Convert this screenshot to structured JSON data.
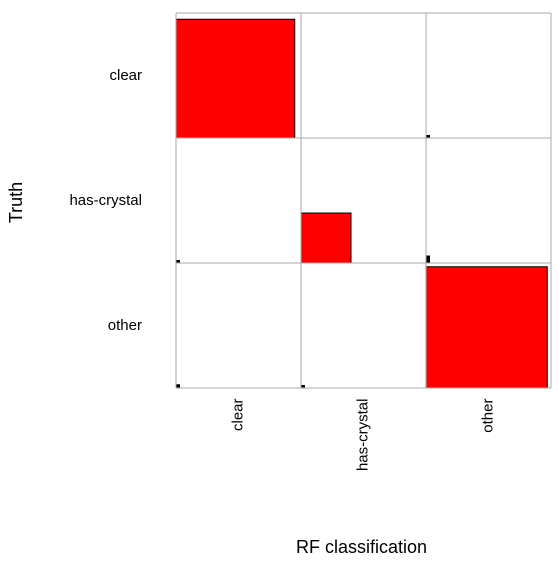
{
  "chart_data": {
    "type": "heatmap",
    "xlabel": "RF classification",
    "ylabel": "Truth",
    "row_labels": [
      "clear",
      "has-crystal",
      "other"
    ],
    "col_labels": [
      "clear",
      "has-crystal",
      "other"
    ],
    "fill_color": "#ff0000",
    "matrix": [
      [
        0.95,
        0.0,
        0.01
      ],
      [
        0.02,
        0.4,
        0.06
      ],
      [
        0.03,
        0.01,
        0.97
      ]
    ]
  }
}
